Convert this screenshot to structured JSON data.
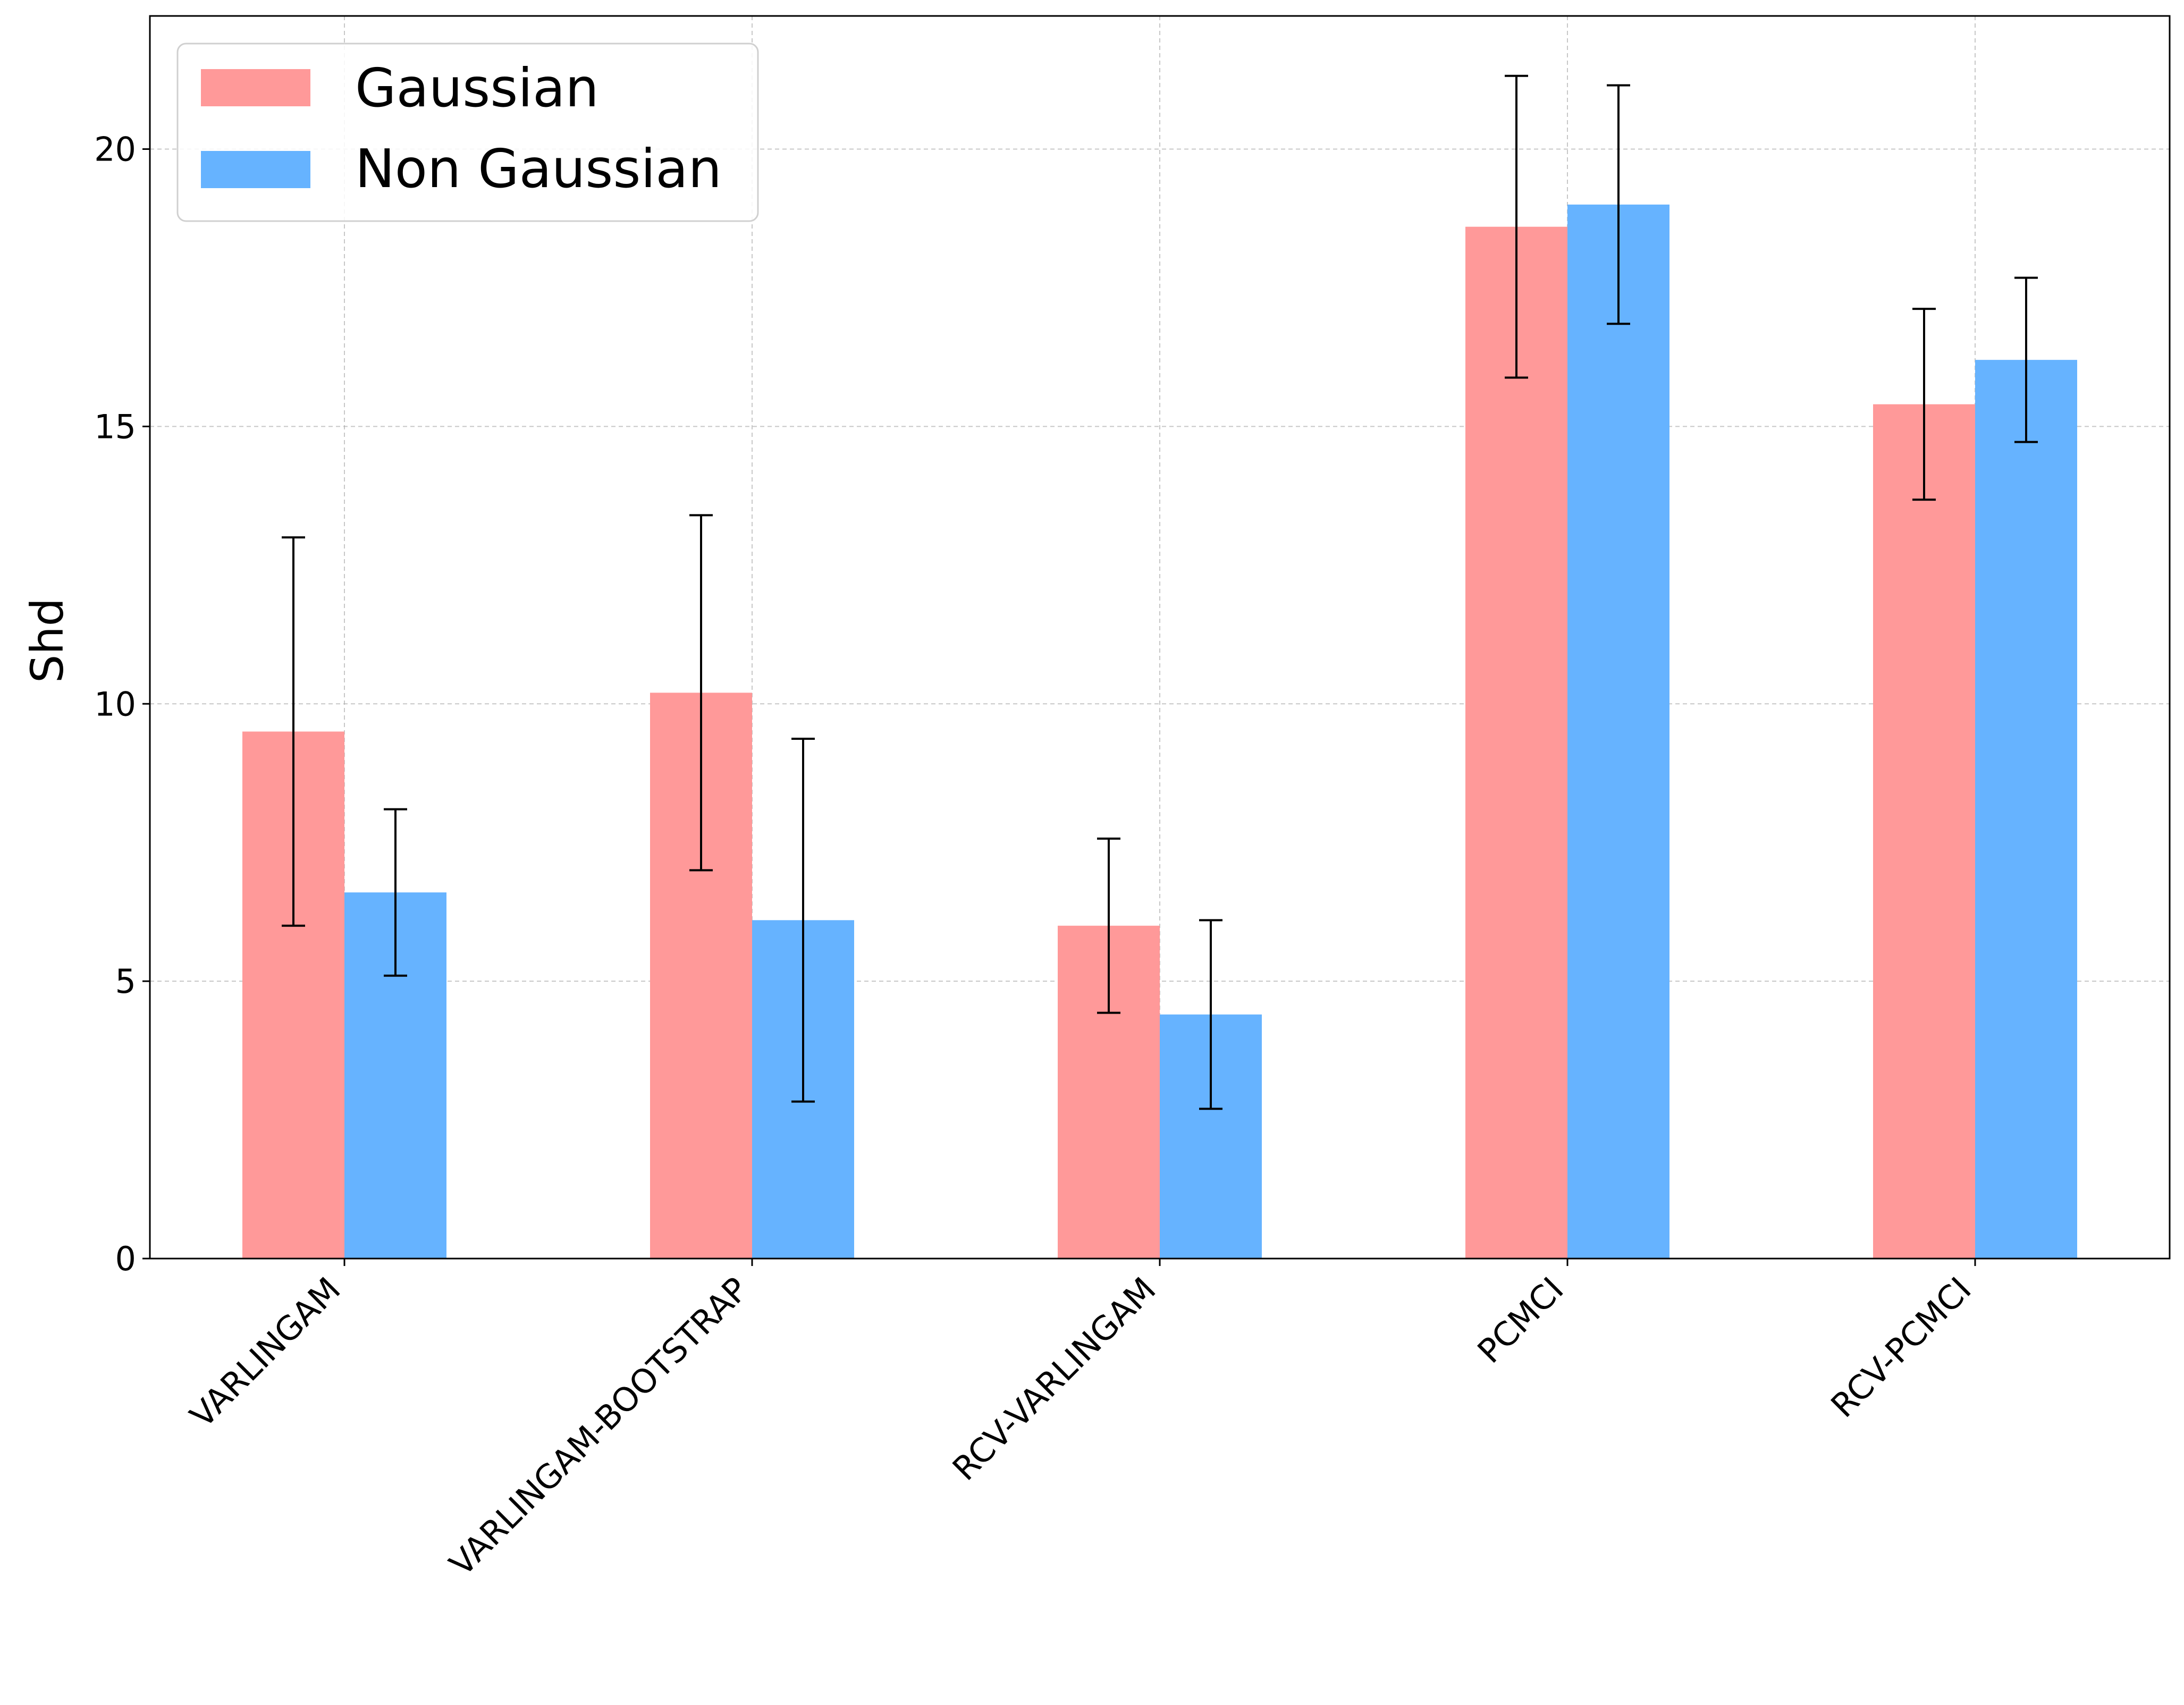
{
  "chart_data": {
    "type": "bar",
    "title": "",
    "xlabel": "",
    "ylabel": "Shd",
    "ylim": [
      0,
      22.4
    ],
    "yticks": [
      0,
      5,
      10,
      15,
      20
    ],
    "grid": true,
    "legend_position": "top-left",
    "categories": [
      "VARLINGAM",
      "VARLINGAM-BOOTSTRAP",
      "RCV-VARLINGAM",
      "PCMCI",
      "RCV-PCMCI"
    ],
    "series": [
      {
        "name": "Gaussian",
        "color": "#ff9999",
        "values": [
          9.5,
          10.2,
          6.0,
          18.6,
          15.4
        ],
        "errors": [
          3.5,
          3.2,
          1.57,
          2.72,
          1.72
        ]
      },
      {
        "name": "Non Gaussian",
        "color": "#66b3ff",
        "values": [
          6.6,
          6.1,
          4.4,
          19.0,
          16.2
        ],
        "errors": [
          1.5,
          3.27,
          1.7,
          2.15,
          1.48
        ]
      }
    ]
  }
}
